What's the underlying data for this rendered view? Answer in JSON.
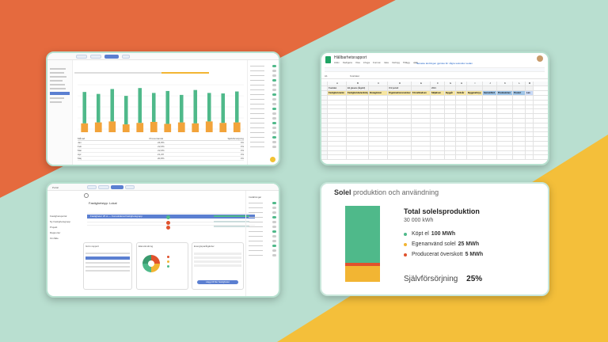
{
  "colors": {
    "orange_bg": "#e56a3e",
    "teal_bg": "#b9dfd0",
    "yellow_bg": "#f4bf3a",
    "green": "#4fb98a",
    "yellow": "#f2b533",
    "red": "#e0522d",
    "blue": "#5b7fd1"
  },
  "dashboard": {
    "filter_label": "Filter",
    "chart_title": "Elförbrukning",
    "table_header": "Månad",
    "table_header2": "Procentandel",
    "table_header3": "Självförsörjning",
    "rows": [
      {
        "label": "Jan",
        "v1": "24,8%",
        "v2": "0%"
      },
      {
        "label": "Feb",
        "v1": "22,0%",
        "v2": "0%"
      },
      {
        "label": "Mar",
        "v1": "22,0%",
        "v2": "0%"
      },
      {
        "label": "Apr",
        "v1": "21,2%",
        "v2": "0%"
      },
      {
        "label": "Maj",
        "v1": "20,8%",
        "v2": "0%"
      }
    ],
    "bars": {
      "green": [
        0.82,
        0.78,
        0.88,
        0.74,
        0.9,
        0.8,
        0.84,
        0.76,
        0.86,
        0.8,
        0.79,
        0.83
      ],
      "orange": [
        0.18,
        0.2,
        0.22,
        0.16,
        0.19,
        0.21,
        0.17,
        0.2,
        0.18,
        0.22,
        0.19,
        0.2
      ]
    }
  },
  "sheet": {
    "title": "Hållbarhetsrapport",
    "menu": [
      "Arkiv",
      "Redigera",
      "Visa",
      "Infoga",
      "Format",
      "Data",
      "Verktyg",
      "Tillägg",
      "Hjälp"
    ],
    "link_text": "Senaste ändringen gjordes för några sekunder sedan",
    "cell_ref": "A1",
    "formula_value": "Kvartalet",
    "row1": [
      "Kvartalet",
      "Ett glesare (åtgärd)",
      "",
      "Ord period",
      "",
      "2021",
      "",
      "",
      "",
      "",
      "",
      ""
    ],
    "row2": [
      "Fastighetsnamn",
      "Fastighetsbeteckning",
      "Boxagiraren",
      "Organisationsnummer",
      "Förvaltnadsen",
      "Säljaksen",
      "Byggår",
      "Verksår",
      "Byggnadstyp",
      "Genomförd",
      "Postnummer",
      "Postort",
      "Lan"
    ],
    "col_letters": [
      "A",
      "B",
      "C",
      "D",
      "E",
      "F",
      "G",
      "H",
      "I",
      "J",
      "K",
      "L",
      "M"
    ]
  },
  "project": {
    "app_name": "Portal",
    "project_title": "Fastighetstyp: Lokal",
    "nav": [
      "Fastighetsportal",
      "Ny Fastighetsgrupp",
      "Projekt",
      "Rapporter",
      "Område"
    ],
    "selected_row": "Fastigheter 25 st — Konsoliderad fastighetsgrupp",
    "panel1_title": "Grön rapport",
    "panel2_title": "Elanvändning",
    "panel3_title": "Energisparåtgärder",
    "button_label": "Lägg till fler fastigheter",
    "settings_title": "Inställningar"
  },
  "solar": {
    "title": "Solel",
    "subtitle": "produktion och användning",
    "total_label": "Total solelsproduktion",
    "total_value": "30 000 kWh",
    "legend": [
      {
        "prefix": "Köpt el",
        "value": "100 MWh",
        "color": "#4fb98a"
      },
      {
        "prefix": "Egenanvänd solel",
        "value": "25 MWh",
        "color": "#f2b533"
      },
      {
        "prefix": "Producerat överskott",
        "value": "5 MWh",
        "color": "#e0522d"
      }
    ],
    "self_label": "Självförsörjning",
    "self_value": "25%",
    "stack_fractions": {
      "green": 0.75,
      "red": 0.04,
      "yellow": 0.21
    }
  }
}
